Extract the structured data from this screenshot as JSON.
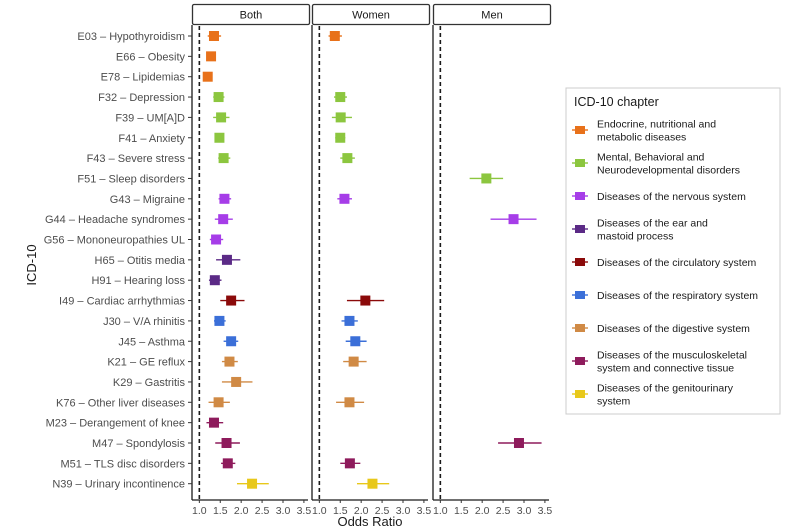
{
  "chart_data": {
    "type": "forest",
    "xlabel": "Odds Ratio",
    "ylabel": "ICD-10",
    "xlim": [
      0.92,
      3.55
    ],
    "xticks": [
      "1.0",
      "1.5",
      "2.0",
      "2.5",
      "3.0",
      "3.5"
    ],
    "xtick_values": [
      1.0,
      1.5,
      2.0,
      2.5,
      3.0,
      3.5
    ],
    "reference_line": 1.0,
    "panels": [
      "Both",
      "Women",
      "Men"
    ],
    "categories": [
      "E03 – Hypothyroidism",
      "E66 – Obesity",
      "E78 – Lipidemias",
      "F32 – Depression",
      "F39 – UM[A]D",
      "F41 – Anxiety",
      "F43 – Severe stress",
      "F51 – Sleep disorders",
      "G43 – Migraine",
      "G44 – Headache syndromes",
      "G56 – Mononeuropathies UL",
      "H65 – Otitis media",
      "H91 – Hearing loss",
      "I49 – Cardiac arrhythmias",
      "J30 – V/A rhinitis",
      "J45 – Asthma",
      "K21 – GE reflux",
      "K29 – Gastritis",
      "K76 – Other liver diseases",
      "M23 – Derangement of knee",
      "M47 – Spondylosis",
      "M51 – TLS disc disorders",
      "N39 – Urinary incontinence"
    ],
    "category_chapter": [
      0,
      0,
      0,
      1,
      1,
      1,
      1,
      1,
      2,
      2,
      2,
      3,
      3,
      4,
      5,
      5,
      6,
      6,
      6,
      7,
      7,
      7,
      8
    ],
    "legend": {
      "title": "ICD-10 chapter",
      "placement": "right",
      "entries": [
        {
          "label_lines": [
            "Endocrine, nutritional and",
            "metabolic diseases"
          ],
          "color": "#E8711A"
        },
        {
          "label_lines": [
            "Mental, Behavioral and",
            "Neurodevelopmental disorders"
          ],
          "color": "#8CC63F"
        },
        {
          "label_lines": [
            "Diseases of the nervous system"
          ],
          "color": "#A63DE8"
        },
        {
          "label_lines": [
            "Diseases of the ear and",
            "mastoid process"
          ],
          "color": "#5B2A86"
        },
        {
          "label_lines": [
            "Diseases of the circulatory system"
          ],
          "color": "#8B0A0A"
        },
        {
          "label_lines": [
            "Diseases of the respiratory system"
          ],
          "color": "#3B6FD8"
        },
        {
          "label_lines": [
            "Diseases of the digestive system"
          ],
          "color": "#D08A45"
        },
        {
          "label_lines": [
            "Diseases of the musculoskeletal",
            "system and connective tissue"
          ],
          "color": "#8E1B5C"
        },
        {
          "label_lines": [
            "Diseases of the genitourinary",
            "system"
          ],
          "color": "#E8C81A"
        }
      ]
    },
    "series": [
      {
        "name": "Both",
        "points": [
          {
            "category": "E03 – Hypothyroidism",
            "or": 1.35,
            "lo": 1.2,
            "hi": 1.52
          },
          {
            "category": "E66 – Obesity",
            "or": 1.28,
            "lo": 1.18,
            "hi": 1.38
          },
          {
            "category": "E78 – Lipidemias",
            "or": 1.2,
            "lo": 1.12,
            "hi": 1.3
          },
          {
            "category": "F32 – Depression",
            "or": 1.46,
            "lo": 1.33,
            "hi": 1.6
          },
          {
            "category": "F39 – UM[A]D",
            "or": 1.52,
            "lo": 1.33,
            "hi": 1.72
          },
          {
            "category": "F41 – Anxiety",
            "or": 1.48,
            "lo": 1.38,
            "hi": 1.58
          },
          {
            "category": "F43 – Severe stress",
            "or": 1.58,
            "lo": 1.45,
            "hi": 1.74
          },
          {
            "category": "G43 – Migraine",
            "or": 1.6,
            "lo": 1.46,
            "hi": 1.76
          },
          {
            "category": "G44 – Headache syndromes",
            "or": 1.57,
            "lo": 1.37,
            "hi": 1.8
          },
          {
            "category": "G56 – Mononeuropathies UL",
            "or": 1.4,
            "lo": 1.25,
            "hi": 1.57
          },
          {
            "category": "H65 – Otitis media",
            "or": 1.66,
            "lo": 1.4,
            "hi": 1.98
          },
          {
            "category": "H91 – Hearing loss",
            "or": 1.37,
            "lo": 1.23,
            "hi": 1.53
          },
          {
            "category": "I49 – Cardiac arrhythmias",
            "or": 1.76,
            "lo": 1.5,
            "hi": 2.08
          },
          {
            "category": "J30 – V/A rhinitis",
            "or": 1.48,
            "lo": 1.35,
            "hi": 1.63
          },
          {
            "category": "J45 – Asthma",
            "or": 1.76,
            "lo": 1.58,
            "hi": 1.93
          },
          {
            "category": "K21 – GE reflux",
            "or": 1.72,
            "lo": 1.54,
            "hi": 1.92
          },
          {
            "category": "K29 – Gastritis",
            "or": 1.88,
            "lo": 1.54,
            "hi": 2.27
          },
          {
            "category": "K76 – Other liver diseases",
            "or": 1.46,
            "lo": 1.22,
            "hi": 1.73
          },
          {
            "category": "M23 – Derangement of knee",
            "or": 1.35,
            "lo": 1.17,
            "hi": 1.57
          },
          {
            "category": "M47 – Spondylosis",
            "or": 1.65,
            "lo": 1.38,
            "hi": 1.97
          },
          {
            "category": "M51 – TLS disc disorders",
            "or": 1.68,
            "lo": 1.52,
            "hi": 1.86
          },
          {
            "category": "N39 – Urinary incontinence",
            "or": 2.26,
            "lo": 1.9,
            "hi": 2.66
          }
        ]
      },
      {
        "name": "Women",
        "points": [
          {
            "category": "E03 – Hypothyroidism",
            "or": 1.37,
            "lo": 1.22,
            "hi": 1.54
          },
          {
            "category": "F32 – Depression",
            "or": 1.5,
            "lo": 1.35,
            "hi": 1.66
          },
          {
            "category": "F39 – UM[A]D",
            "or": 1.51,
            "lo": 1.3,
            "hi": 1.78
          },
          {
            "category": "F41 – Anxiety",
            "or": 1.5,
            "lo": 1.38,
            "hi": 1.62
          },
          {
            "category": "F43 – Severe stress",
            "or": 1.67,
            "lo": 1.5,
            "hi": 1.85
          },
          {
            "category": "G43 – Migraine",
            "or": 1.6,
            "lo": 1.43,
            "hi": 1.78
          },
          {
            "category": "I49 – Cardiac arrhythmias",
            "or": 2.1,
            "lo": 1.66,
            "hi": 2.55
          },
          {
            "category": "J30 – V/A rhinitis",
            "or": 1.72,
            "lo": 1.53,
            "hi": 1.92
          },
          {
            "category": "J45 – Asthma",
            "or": 1.86,
            "lo": 1.63,
            "hi": 2.13
          },
          {
            "category": "K21 – GE reflux",
            "or": 1.82,
            "lo": 1.57,
            "hi": 2.13
          },
          {
            "category": "K76 – Other liver diseases",
            "or": 1.72,
            "lo": 1.4,
            "hi": 2.07
          },
          {
            "category": "M51 – TLS disc disorders",
            "or": 1.73,
            "lo": 1.5,
            "hi": 1.98
          },
          {
            "category": "N39 – Urinary incontinence",
            "or": 2.27,
            "lo": 1.9,
            "hi": 2.67
          }
        ]
      },
      {
        "name": "Men",
        "points": [
          {
            "category": "F51 – Sleep disorders",
            "or": 2.1,
            "lo": 1.7,
            "hi": 2.5
          },
          {
            "category": "G44 – Headache syndromes",
            "or": 2.75,
            "lo": 2.2,
            "hi": 3.3
          },
          {
            "category": "M47 – Spondylosis",
            "or": 2.88,
            "lo": 2.38,
            "hi": 3.42
          }
        ]
      }
    ]
  }
}
